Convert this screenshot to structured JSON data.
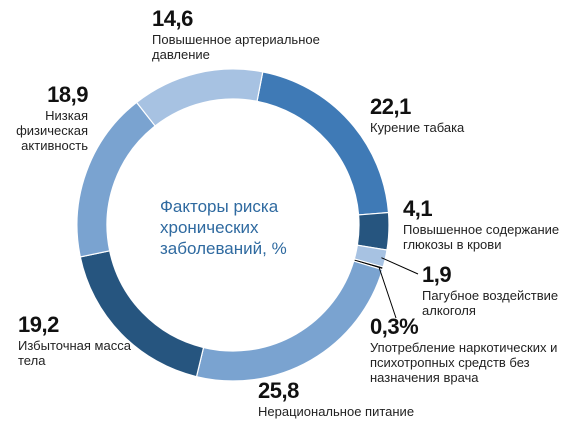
{
  "center_title": "Факторы риска хронических заболеваний, %",
  "colors": {
    "dark": "#26557f",
    "mid": "#3f7ab6",
    "soft": "#7aa3d0",
    "light": "#a7c2e2",
    "black": "#000000"
  },
  "chart_data": {
    "type": "pie",
    "title": "Факторы риска хронических заболеваний, %",
    "slices": [
      {
        "label": "Курение табака",
        "value_text": "22,1",
        "value": 22.1,
        "color": "#3f7ab6"
      },
      {
        "label": "Повышенное содержание глюкозы в крови",
        "value_text": "4,1",
        "value": 4.1,
        "color": "#26557f"
      },
      {
        "label": "Пагубное воздействие алкоголя",
        "value_text": "1,9",
        "value": 1.9,
        "color": "#a7c2e2"
      },
      {
        "label": "Употребление наркотических и психотропных средств без назначения врача",
        "value_text": "0,3%",
        "value": 0.3,
        "color": "#000000"
      },
      {
        "label": "Нерациональное питание",
        "value_text": "25,8",
        "value": 25.8,
        "color": "#7aa3d0"
      },
      {
        "label": "Избыточная масса тела",
        "value_text": "19,2",
        "value": 19.2,
        "color": "#26557f"
      },
      {
        "label": "Низкая физическая активность",
        "value_text": "18,9",
        "value": 18.9,
        "color": "#7aa3d0"
      },
      {
        "label": "Повышенное артериальное давление",
        "value_text": "14,6",
        "value": 14.6,
        "color": "#a7c2e2"
      }
    ]
  }
}
